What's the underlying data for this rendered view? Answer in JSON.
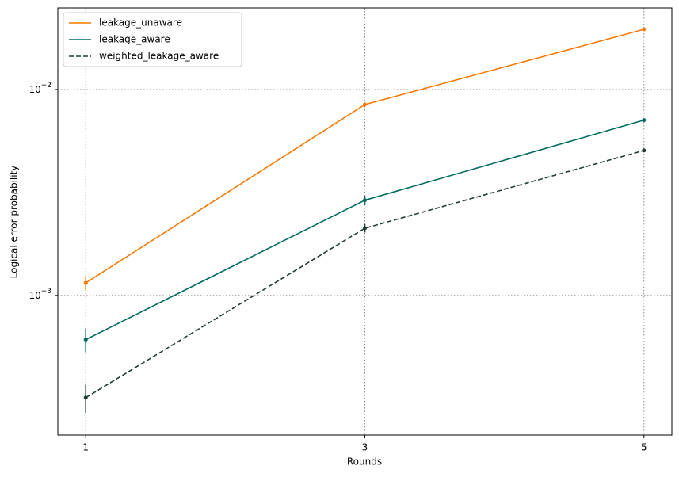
{
  "chart_data": {
    "type": "line",
    "xlabel": "Rounds",
    "ylabel": "Logical error probability",
    "x": [
      1,
      3,
      5
    ],
    "xlim": [
      0.8,
      5.2
    ],
    "xticks": [
      1,
      3,
      5
    ],
    "ylim": [
      0.00021,
      0.0249
    ],
    "yscale": "log",
    "yticks": [
      {
        "value": 0.001,
        "label": "10−3"
      },
      {
        "value": 0.01,
        "label": "10−2"
      }
    ],
    "grid": true,
    "legend": "upper left",
    "series": [
      {
        "name": "leakage_unaware",
        "color": "#f57900",
        "linestyle": "solid",
        "values": [
          0.00115,
          0.00845,
          0.0196
        ],
        "errors": [
          9e-05,
          0.0002,
          0.0003
        ]
      },
      {
        "name": "leakage_aware",
        "color": "#006b5e",
        "linestyle": "solid",
        "values": [
          0.00061,
          0.0029,
          0.0071
        ],
        "errors": [
          8e-05,
          0.00015,
          0.00012
        ]
      },
      {
        "name": "weighted_leakage_aware",
        "color": "#1f3d36",
        "linestyle": "dashed",
        "values": [
          0.000319,
          0.00212,
          0.00506
        ],
        "errors": [
          5e-05,
          0.0001,
          9e-05
        ]
      }
    ]
  }
}
